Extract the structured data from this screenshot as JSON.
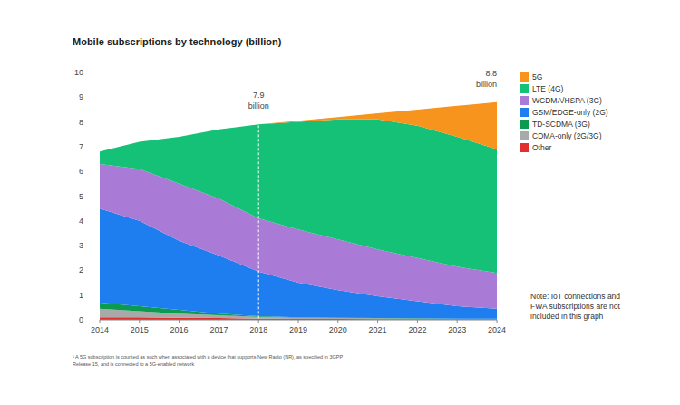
{
  "chart_data": {
    "type": "area",
    "stacked": true,
    "title": "Mobile subscriptions by technology (billion)",
    "x": [
      2014,
      2015,
      2016,
      2017,
      2018,
      2019,
      2020,
      2021,
      2022,
      2023,
      2024
    ],
    "xlim": [
      2014,
      2024
    ],
    "xticks": [
      2014,
      2015,
      2016,
      2017,
      2018,
      2019,
      2020,
      2021,
      2022,
      2023,
      2024
    ],
    "ylim": [
      0,
      10
    ],
    "yticks": [
      0,
      1,
      2,
      3,
      4,
      5,
      6,
      7,
      8,
      9,
      10
    ],
    "grid": false,
    "legend": "right",
    "series": [
      {
        "name": "5G",
        "color": "#f7941d",
        "values": [
          0,
          0,
          0,
          0,
          0,
          0.05,
          0.1,
          0.25,
          0.65,
          1.25,
          1.9
        ]
      },
      {
        "name": "LTE (4G)",
        "color": "#14c177",
        "values": [
          0.5,
          1.1,
          1.9,
          2.8,
          3.8,
          4.35,
          4.85,
          5.25,
          5.35,
          5.25,
          5.0
        ]
      },
      {
        "name": "WCDMA/HSPA (3G)",
        "color": "#a97bd6",
        "values": [
          1.8,
          2.1,
          2.3,
          2.3,
          2.15,
          2.15,
          2.05,
          1.9,
          1.75,
          1.6,
          1.45
        ]
      },
      {
        "name": "GSM/EDGE-only (2G)",
        "color": "#1e7ef0",
        "values": [
          3.8,
          3.45,
          2.8,
          2.35,
          1.8,
          1.4,
          1.12,
          0.88,
          0.69,
          0.5,
          0.4
        ]
      },
      {
        "name": "TD-SCDMA (3G)",
        "color": "#0a9b51",
        "values": [
          0.25,
          0.2,
          0.15,
          0.07,
          0.03,
          0.02,
          0.01,
          0.01,
          0.01,
          0.01,
          0.01
        ]
      },
      {
        "name": "CDMA-only (2G/3G)",
        "color": "#a9a9a9",
        "values": [
          0.35,
          0.25,
          0.17,
          0.11,
          0.07,
          0.04,
          0.03,
          0.03,
          0.02,
          0.01,
          0.01
        ]
      },
      {
        "name": "Other",
        "color": "#e0312f",
        "values": [
          0.1,
          0.1,
          0.08,
          0.07,
          0.05,
          0.04,
          0.04,
          0.03,
          0.03,
          0.03,
          0.03
        ]
      }
    ],
    "annotations": [
      {
        "text": "7.9 billion",
        "x": 2018,
        "y": 7.9,
        "line_style": "dashed"
      },
      {
        "text": "8.8 billion",
        "x": 2024,
        "y": 8.8
      }
    ],
    "note": "Note: IoT connections and FWA subscriptions are not included in this graph",
    "footnote": "¹ A 5G subscription is counted as such when associated with a device that supports New Radio (NR), as specified in 3GPP Release 15, and is connected to a 5G-enabled network"
  }
}
